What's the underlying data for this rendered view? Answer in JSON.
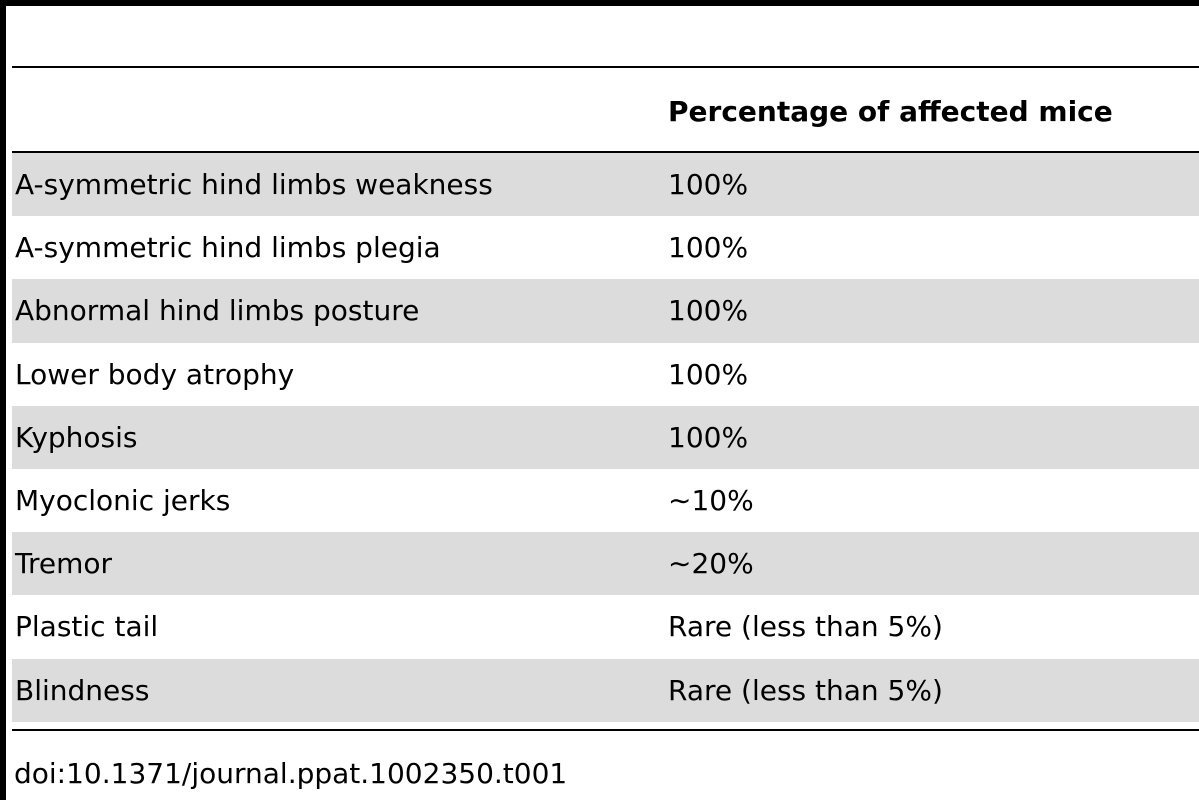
{
  "table": {
    "header": {
      "symptom": "",
      "percentage": "Percentage of affected mice"
    },
    "rows": [
      {
        "symptom": "A-symmetric hind limbs weakness",
        "percentage": "100%"
      },
      {
        "symptom": "A-symmetric hind limbs plegia",
        "percentage": "100%"
      },
      {
        "symptom": "Abnormal hind limbs posture",
        "percentage": "100%"
      },
      {
        "symptom": "Lower body atrophy",
        "percentage": "100%"
      },
      {
        "symptom": "Kyphosis",
        "percentage": "100%"
      },
      {
        "symptom": "Myoclonic jerks",
        "percentage": "∼10%"
      },
      {
        "symptom": "Tremor",
        "percentage": "∼20%"
      },
      {
        "symptom": "Plastic tail",
        "percentage": "Rare (less than 5%)"
      },
      {
        "symptom": "Blindness",
        "percentage": "Rare (less than 5%)"
      }
    ]
  },
  "footer": {
    "doi": "doi:10.1371/journal.ppat.1002350.t001"
  },
  "colors": {
    "shaded_row": "#dcdcdc",
    "rule": "#000000"
  }
}
